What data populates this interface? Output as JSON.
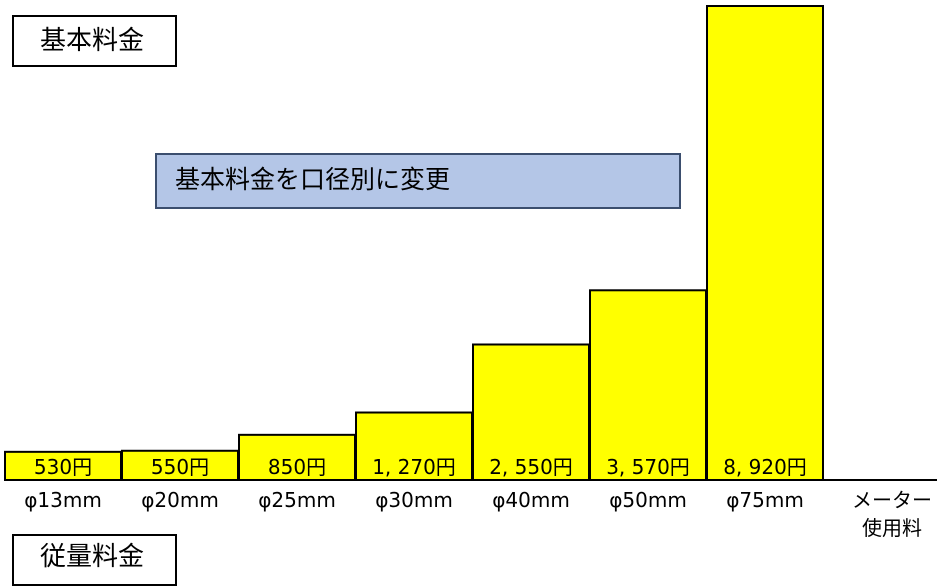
{
  "title_label": "基本料金",
  "bottom_label": "従量料金",
  "annotation": "基本料金を口径別に変更",
  "colors": {
    "bar": "#ffff00",
    "bar_border": "#000000",
    "annotation_bg": "#b4c6e7"
  },
  "chart_data": {
    "type": "bar",
    "title": "基本料金",
    "categories": [
      "φ13mm",
      "φ20mm",
      "φ25mm",
      "φ30mm",
      "φ40mm",
      "φ50mm",
      "φ75mm",
      "メーター使用料"
    ],
    "tick_labels": [
      [
        "φ13mm"
      ],
      [
        "φ20mm"
      ],
      [
        "φ25mm"
      ],
      [
        "φ30mm"
      ],
      [
        "φ40mm"
      ],
      [
        "φ50mm"
      ],
      [
        "φ75mm"
      ],
      [
        "メーター",
        "使用料"
      ]
    ],
    "values": [
      530,
      550,
      850,
      1270,
      2550,
      3570,
      8920,
      null
    ],
    "value_labels": [
      "530円",
      "550円",
      "850円",
      "1, 270円",
      "2, 550円",
      "3, 570円",
      "8, 920円",
      ""
    ],
    "ylim": [
      0,
      8920
    ]
  }
}
